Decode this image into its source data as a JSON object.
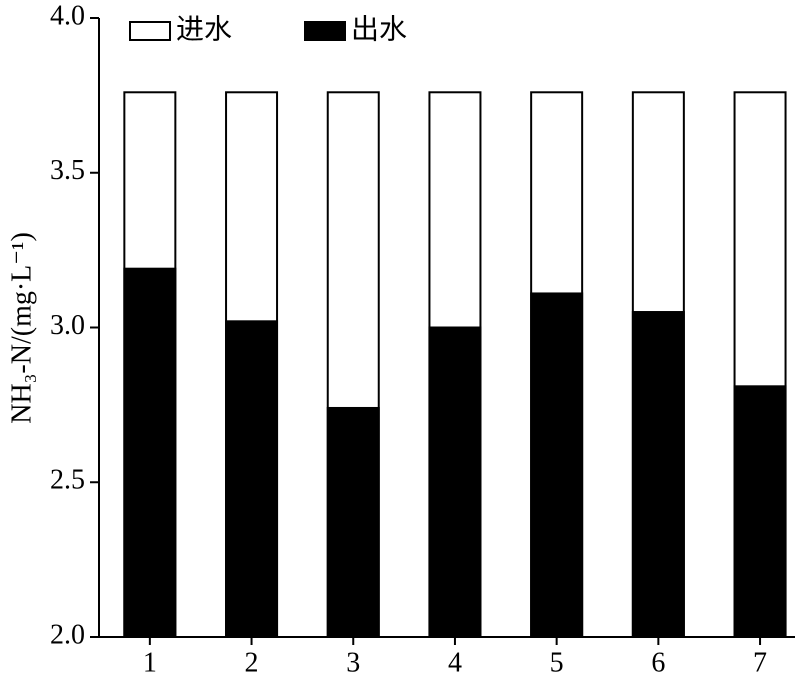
{
  "chart_data": {
    "type": "bar",
    "overlap": true,
    "y_label": "NH₃-N/(mg·L⁻¹)",
    "categories": [
      "1",
      "2",
      "3",
      "4",
      "5",
      "6",
      "7"
    ],
    "series": [
      {
        "name": "进水",
        "color": "#ffffff",
        "values": [
          3.76,
          3.76,
          3.76,
          3.76,
          3.76,
          3.76,
          3.76
        ]
      },
      {
        "name": "出水",
        "color": "#000000",
        "values": [
          3.19,
          3.02,
          2.74,
          3.0,
          3.11,
          3.05,
          2.81
        ]
      }
    ],
    "ylim": [
      2.0,
      4.0
    ],
    "yticks": [
      {
        "value": 2.0,
        "label": "2.0"
      },
      2.5,
      {
        "value": 3.0,
        "label": "3.0"
      },
      3.5,
      {
        "value": 4.0,
        "label": "4.0"
      }
    ],
    "grid": false
  }
}
